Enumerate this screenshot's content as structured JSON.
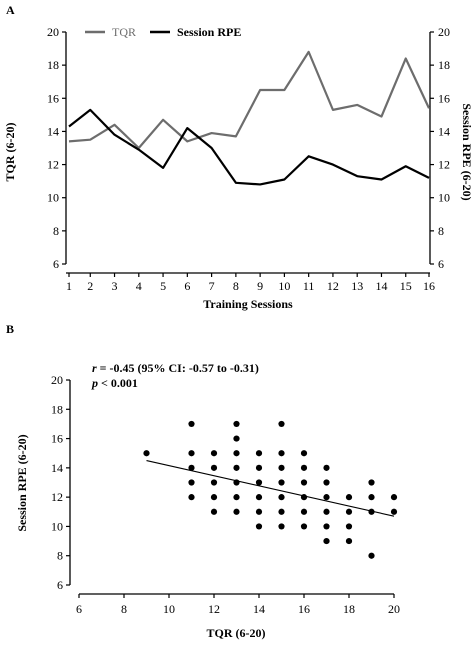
{
  "chart_data": [
    {
      "panel": "A",
      "type": "line",
      "x": [
        1,
        2,
        3,
        4,
        5,
        6,
        7,
        8,
        9,
        10,
        11,
        12,
        13,
        14,
        15,
        16
      ],
      "xlabel": "Training Sessions",
      "ylabel_left": "TQR (6-20)",
      "ylabel_right": "Session RPE (6-20)",
      "ylim": [
        6,
        20
      ],
      "yticks": [
        6,
        8,
        10,
        12,
        14,
        16,
        18,
        20
      ],
      "legend_placement": "top-left",
      "series": [
        {
          "name": "TQR",
          "color": "#6d6d6d",
          "values": [
            13.4,
            13.5,
            14.4,
            13.0,
            14.7,
            13.4,
            13.9,
            13.7,
            16.5,
            16.5,
            18.8,
            15.3,
            15.6,
            14.9,
            18.4,
            15.4
          ]
        },
        {
          "name": "Session RPE",
          "color": "#000000",
          "values": [
            14.3,
            15.3,
            13.8,
            12.9,
            11.8,
            14.2,
            13.0,
            10.9,
            10.8,
            11.1,
            12.5,
            12.0,
            11.3,
            11.1,
            11.9,
            11.2
          ]
        }
      ]
    },
    {
      "panel": "B",
      "type": "scatter",
      "xlabel": "TQR (6-20)",
      "ylabel": "Session RPE (6-20)",
      "xlim": [
        6,
        20
      ],
      "ylim": [
        6,
        20
      ],
      "xticks": [
        6,
        8,
        10,
        12,
        14,
        16,
        18,
        20
      ],
      "yticks": [
        6,
        8,
        10,
        12,
        14,
        16,
        18,
        20
      ],
      "annotation_r_symbol": "r",
      "annotation_r_value": " = -0.45 (95% CI: -0.57 to -0.31)",
      "annotation_p_symbol": "p",
      "annotation_p_value": " < 0.001",
      "regression_line": {
        "x": [
          9,
          20
        ],
        "y": [
          14.5,
          10.7
        ]
      },
      "points": [
        [
          9,
          15
        ],
        [
          11,
          17
        ],
        [
          11,
          15
        ],
        [
          11,
          14
        ],
        [
          11,
          13
        ],
        [
          11,
          12
        ],
        [
          12,
          15
        ],
        [
          12,
          14
        ],
        [
          12,
          13
        ],
        [
          12,
          12
        ],
        [
          12,
          11
        ],
        [
          13,
          17
        ],
        [
          13,
          16
        ],
        [
          13,
          15
        ],
        [
          13,
          14
        ],
        [
          13,
          13
        ],
        [
          13,
          12
        ],
        [
          13,
          11
        ],
        [
          14,
          15
        ],
        [
          14,
          14
        ],
        [
          14,
          13
        ],
        [
          14,
          12
        ],
        [
          14,
          11
        ],
        [
          14,
          10
        ],
        [
          15,
          17
        ],
        [
          15,
          15
        ],
        [
          15,
          14
        ],
        [
          15,
          13
        ],
        [
          15,
          12
        ],
        [
          15,
          11
        ],
        [
          15,
          10
        ],
        [
          16,
          15
        ],
        [
          16,
          14
        ],
        [
          16,
          13
        ],
        [
          16,
          12
        ],
        [
          16,
          11
        ],
        [
          16,
          10
        ],
        [
          17,
          14
        ],
        [
          17,
          13
        ],
        [
          17,
          12
        ],
        [
          17,
          11
        ],
        [
          17,
          10
        ],
        [
          17,
          9
        ],
        [
          18,
          12
        ],
        [
          18,
          11
        ],
        [
          18,
          10
        ],
        [
          18,
          9
        ],
        [
          19,
          13
        ],
        [
          19,
          12
        ],
        [
          19,
          11
        ],
        [
          19,
          8
        ],
        [
          20,
          12
        ],
        [
          20,
          11
        ]
      ]
    }
  ]
}
